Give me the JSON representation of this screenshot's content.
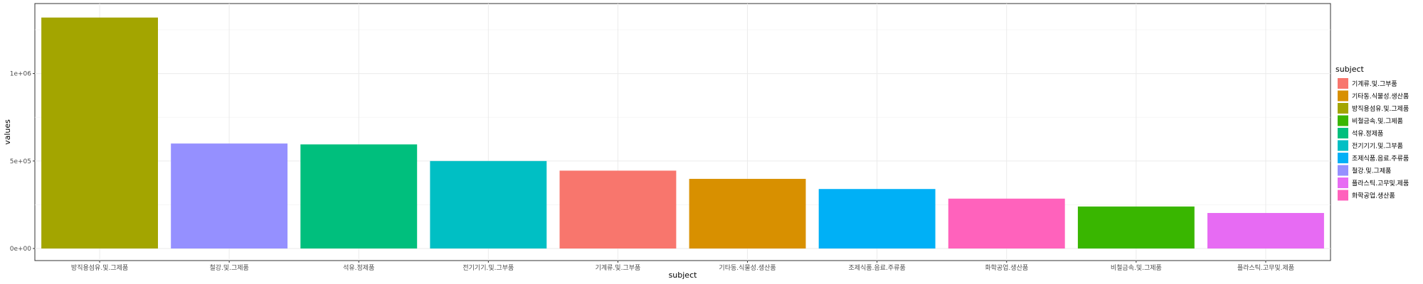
{
  "chart_data": {
    "type": "bar",
    "xlabel": "subject",
    "ylabel": "values",
    "ylim": [
      0,
      1400000
    ],
    "y_ticks": [
      {
        "value": 0,
        "label": "0e+00"
      },
      {
        "value": 500000,
        "label": "5e+05"
      },
      {
        "value": 1000000,
        "label": "1e+06"
      }
    ],
    "grid": true,
    "legend_position": "right",
    "legend_title": "subject",
    "categories": [
      "방직용섬유.및.그제품",
      "철강.및.그제품",
      "석유.정제품",
      "전기기기.및.그부품",
      "기계류.및.그부품",
      "기타동.식물성.생산품",
      "조제식품.음료.주류품",
      "화학공업.생산품",
      "비철금속.및.그제품",
      "플라스틱.고무및.제품"
    ],
    "values": [
      1320000,
      600000,
      595000,
      500000,
      445000,
      398000,
      340000,
      285000,
      240000,
      203000
    ],
    "bar_colors": [
      "#A3A500",
      "#9590FF",
      "#00BF7D",
      "#00BFC4",
      "#F8766D",
      "#D89000",
      "#00B0F6",
      "#FF62BC",
      "#39B600",
      "#E76BF3"
    ],
    "legend": [
      {
        "label": "기계류.및.그부품",
        "color": "#F8766D"
      },
      {
        "label": "기타동.식물성.생산품",
        "color": "#D89000"
      },
      {
        "label": "방직용섬유.및.그제품",
        "color": "#A3A500"
      },
      {
        "label": "비철금속.및.그제품",
        "color": "#39B600"
      },
      {
        "label": "석유.정제품",
        "color": "#00BF7D"
      },
      {
        "label": "전기기기.및.그부품",
        "color": "#00BFC4"
      },
      {
        "label": "조제식품.음료.주류품",
        "color": "#00B0F6"
      },
      {
        "label": "철강.및.그제품",
        "color": "#9590FF"
      },
      {
        "label": "플라스틱.고무및.제품",
        "color": "#E76BF3"
      },
      {
        "label": "화학공업.생산품",
        "color": "#FF62BC"
      }
    ]
  }
}
